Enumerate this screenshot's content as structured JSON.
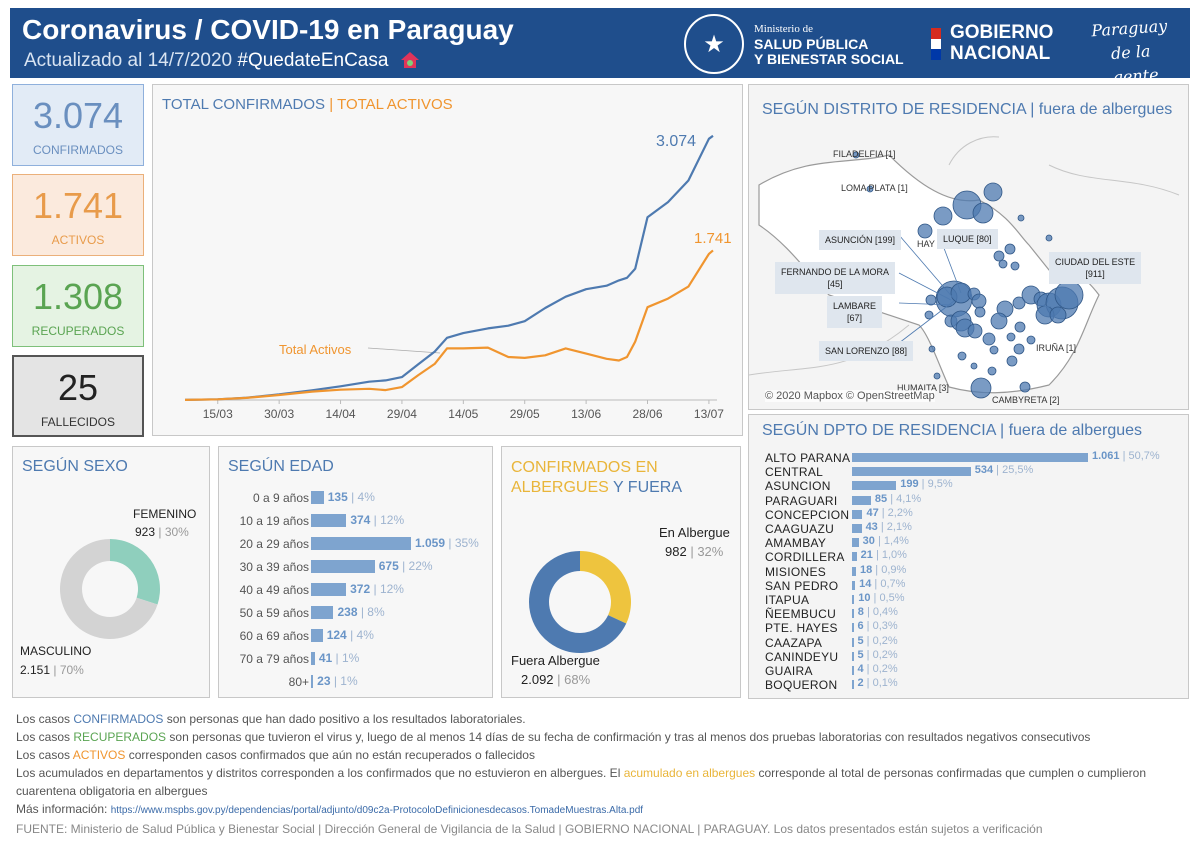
{
  "header": {
    "title": "Coronavirus / COVID-19 en Paraguay",
    "updated": "Actualizado al 14/7/2020",
    "hashtag": "#QuedateEnCasa",
    "ministry_small": "Ministerio de",
    "ministry_line1": "SALUD PÚBLICA",
    "ministry_line2": "Y BIENESTAR SOCIAL",
    "gob_line1": "GOBIERNO",
    "gob_line2": "NACIONAL",
    "brand_line1": "Paraguay",
    "brand_line2": "de la gente",
    "colors": {
      "bar": "#1f4e8c",
      "flag_red": "#d52b1e",
      "flag_white": "#ffffff",
      "flag_blue": "#0038a8"
    }
  },
  "kpis": {
    "confirmados": {
      "value": "3.074",
      "label": "CONFIRMADOS"
    },
    "activos": {
      "value": "1.741",
      "label": "ACTIVOS"
    },
    "recuperados": {
      "value": "1.308",
      "label": "RECUPERADOS"
    },
    "fallecidos": {
      "value": "25",
      "label": "FALLECIDOS"
    }
  },
  "timeline": {
    "title_confirmed": "TOTAL CONFIRMADOS",
    "title_sep": "|",
    "title_active": "TOTAL ACTIVOS",
    "end_label_confirmed": "3.074",
    "end_label_active": "1.741",
    "annotation": "Total Activos"
  },
  "sexo": {
    "title": "SEGÚN SEXO",
    "femenino_label": "FEMENINO",
    "femenino_value": "923",
    "femenino_pct": "| 30%",
    "masculino_label": "MASCULINO",
    "masculino_value": "2.151",
    "masculino_pct": "| 70%"
  },
  "edad": {
    "title": "SEGÚN EDAD",
    "rows": [
      {
        "label": "0 a 9 años",
        "value": "135",
        "pct": "| 4%"
      },
      {
        "label": "10 a 19 años",
        "value": "374",
        "pct": "| 12%"
      },
      {
        "label": "20 a 29 años",
        "value": "1.059",
        "pct": "| 35%"
      },
      {
        "label": "30 a 39 años",
        "value": "675",
        "pct": "| 22%"
      },
      {
        "label": "40 a 49 años",
        "value": "372",
        "pct": "| 12%"
      },
      {
        "label": "50 a 59 años",
        "value": "238",
        "pct": "| 8%"
      },
      {
        "label": "60 a 69 años",
        "value": "124",
        "pct": "| 4%"
      },
      {
        "label": "70 a 79 años",
        "value": "41",
        "pct": "| 1%"
      },
      {
        "label": "80+",
        "value": "23",
        "pct": "| 1%"
      }
    ]
  },
  "albergues": {
    "title_a": "CONFIRMADOS EN",
    "title_b": "ALBERGUES",
    "title_c": "Y FUERA",
    "en_label": "En Albergue",
    "en_value": "982",
    "en_pct": "| 32%",
    "fuera_label": "Fuera Albergue",
    "fuera_value": "2.092",
    "fuera_pct": "| 68%"
  },
  "distrito": {
    "title": "SEGÚN DISTRITO DE RESIDENCIA | fuera de albergues",
    "labels": {
      "filadelfia": "FILADELFIA [1]",
      "loma_plata": "LOMA PLATA [1]",
      "asuncion": "ASUNCIÓN [199]",
      "luque": "LUQUE [80]",
      "ciudad_este_1": "CIUDAD DEL ESTE",
      "ciudad_este_2": "[911]",
      "fernando_1": "FERNANDO DE LA MORA",
      "fernando_2": "[45]",
      "lambare_1": "LAMBARE",
      "lambare_2": "[67]",
      "san_lorenzo": "SAN LORENZO [88]",
      "iruna": "IRUÑA [1]",
      "humaita": "HUMAITA [3]",
      "cambyreta": "CAMBYRETA [2]",
      "hay": "HAY"
    },
    "credit": "© 2020 Mapbox © OpenStreetMap"
  },
  "dpto": {
    "title": "SEGÚN DPTO DE RESIDENCIA | fuera de albergues",
    "rows": [
      {
        "label": "ALTO PARANA",
        "value": "1.061",
        "pct": "| 50,7%"
      },
      {
        "label": "CENTRAL",
        "value": "534",
        "pct": "| 25,5%"
      },
      {
        "label": "ASUNCION",
        "value": "199",
        "pct": "| 9,5%"
      },
      {
        "label": "PARAGUARI",
        "value": "85",
        "pct": "| 4,1%"
      },
      {
        "label": "CONCEPCION",
        "value": "47",
        "pct": "| 2,2%"
      },
      {
        "label": "CAAGUAZU",
        "value": "43",
        "pct": "| 2,1%"
      },
      {
        "label": "AMAMBAY",
        "value": "30",
        "pct": "| 1,4%"
      },
      {
        "label": "CORDILLERA",
        "value": "21",
        "pct": "| 1,0%"
      },
      {
        "label": "MISIONES",
        "value": "18",
        "pct": "| 0,9%"
      },
      {
        "label": "SAN PEDRO",
        "value": "14",
        "pct": "| 0,7%"
      },
      {
        "label": "ITAPUA",
        "value": "10",
        "pct": "| 0,5%"
      },
      {
        "label": "ÑEEMBUCU",
        "value": "8",
        "pct": "| 0,4%"
      },
      {
        "label": "PTE. HAYES",
        "value": "6",
        "pct": "| 0,3%"
      },
      {
        "label": "CAAZAPA",
        "value": "5",
        "pct": "| 0,2%"
      },
      {
        "label": "CANINDEYU",
        "value": "5",
        "pct": "| 0,2%"
      },
      {
        "label": "GUAIRA",
        "value": "4",
        "pct": "| 0,2%"
      },
      {
        "label": "BOQUERON",
        "value": "2",
        "pct": "| 0,1%"
      }
    ]
  },
  "notes": {
    "n1_a": "Los casos ",
    "n1_b": "CONFIRMADOS",
    "n1_c": " son personas que han dado positivo a los resultados laboratoriales.",
    "n2_a": "Los casos ",
    "n2_b": "RECUPERADOS",
    "n2_c": " son personas que tuvieron el virus y, luego de al menos 14 días de su fecha de confirmación y tras al menos dos pruebas laboratorias con resultados negativos consecutivos",
    "n3_a": "Los casos ",
    "n3_b": "ACTIVOS",
    "n3_c": " corresponden casos confirmados que aún no están recuperados o fallecidos",
    "n4_a": "Los acumulados en departamentos y distritos corresponden a los confirmados que no estuvieron en albergues. El ",
    "n4_b": "acumulado en albergues",
    "n4_c": " corresponde al total de personas confirmadas que cumplen o cumplieron cuarentena obligatoria en albergues",
    "more_label": "Más información:",
    "more_link": "https://www.mspbs.gov.py/dependencias/portal/adjunto/d09c2a-ProtocoloDefinicionesdecasos.TomadeMuestras.Alta.pdf",
    "source_label": "FUENTE",
    "source_text": ": Ministerio de Salud Pública y Bienestar Social | Dirección General de Vigilancia de la Salud | GOBIERNO NACIONAL | PARAGUAY. Los datos presentados están sujetos a verificación"
  },
  "chart_data": [
    {
      "type": "line",
      "title": "TOTAL CONFIRMADOS | TOTAL ACTIVOS",
      "x_ticks": [
        "15/03",
        "30/03",
        "14/04",
        "29/04",
        "14/05",
        "29/05",
        "13/06",
        "28/06",
        "13/07"
      ],
      "x": [
        "07/03",
        "15/03",
        "22/03",
        "30/03",
        "07/04",
        "14/04",
        "21/04",
        "25/04",
        "29/04",
        "03/05",
        "07/05",
        "10/05",
        "14/05",
        "20/05",
        "25/05",
        "29/05",
        "03/06",
        "08/06",
        "13/06",
        "18/06",
        "21/06",
        "23/06",
        "25/06",
        "28/06",
        "03/07",
        "08/07",
        "13/07",
        "14/07"
      ],
      "series": [
        {
          "name": "Total Confirmados",
          "color": "#4e7ab0",
          "values": [
            1,
            8,
            27,
            65,
            113,
            159,
            213,
            228,
            266,
            415,
            563,
            724,
            778,
            833,
            865,
            917,
            1070,
            1202,
            1289,
            1330,
            1392,
            1422,
            1528,
            2127,
            2303,
            2554,
            3040,
            3074
          ]
        },
        {
          "name": "Total Activos",
          "color": "#f0952f",
          "values": [
            1,
            8,
            24,
            58,
            98,
            120,
            130,
            115,
            150,
            290,
            420,
            600,
            600,
            610,
            500,
            490,
            520,
            600,
            540,
            480,
            460,
            500,
            680,
            1080,
            1180,
            1320,
            1700,
            1741
          ]
        }
      ],
      "ylim": [
        0,
        3200
      ]
    },
    {
      "type": "pie",
      "title": "SEGÚN SEXO",
      "categories": [
        "FEMENINO",
        "MASCULINO"
      ],
      "values": [
        923,
        2151
      ],
      "colors": [
        "#8fcfbd",
        "#d3d3d3"
      ]
    },
    {
      "type": "bar",
      "title": "SEGÚN EDAD",
      "categories": [
        "0 a 9 años",
        "10 a 19 años",
        "20 a 29 años",
        "30 a 39 años",
        "40 a 49 años",
        "50 a 59 años",
        "60 a 69 años",
        "70 a 79 años",
        "80+"
      ],
      "values": [
        135,
        374,
        1059,
        675,
        372,
        238,
        124,
        41,
        23
      ]
    },
    {
      "type": "pie",
      "title": "CONFIRMADOS EN ALBERGUES Y FUERA",
      "categories": [
        "En Albergue",
        "Fuera Albergue"
      ],
      "values": [
        982,
        2092
      ],
      "colors": [
        "#eec43e",
        "#4e7ab0"
      ]
    },
    {
      "type": "bar",
      "title": "SEGÚN DPTO DE RESIDENCIA | fuera de albergues",
      "categories": [
        "ALTO PARANA",
        "CENTRAL",
        "ASUNCION",
        "PARAGUARI",
        "CONCEPCION",
        "CAAGUAZU",
        "AMAMBAY",
        "CORDILLERA",
        "MISIONES",
        "SAN PEDRO",
        "ITAPUA",
        "ÑEEMBUCU",
        "PTE. HAYES",
        "CAAZAPA",
        "CANINDEYU",
        "GUAIRA",
        "BOQUERON"
      ],
      "values": [
        1061,
        534,
        199,
        85,
        47,
        43,
        30,
        21,
        18,
        14,
        10,
        8,
        6,
        5,
        5,
        4,
        2
      ]
    }
  ]
}
